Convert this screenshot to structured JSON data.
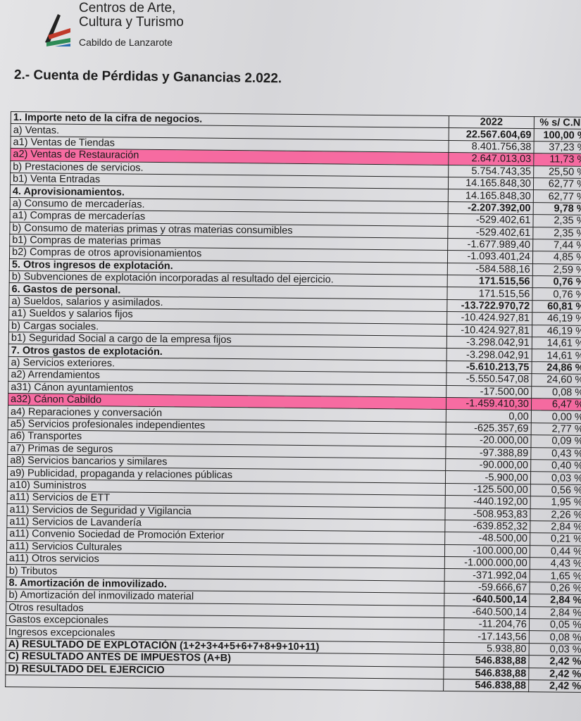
{
  "header": {
    "logo_line1": "Centros de Arte,",
    "logo_line2": "Cultura y Turismo",
    "logo_sub": "Cabildo de Lanzarote",
    "title": "2.- Cuenta de Pérdidas y Ganancias 2.022."
  },
  "colors": {
    "highlight": "#ff4a8c"
  },
  "table": {
    "columns": [
      "1. Importe neto de la cifra de negocios.",
      "2022",
      "% s/ C.N."
    ],
    "rows": [
      {
        "concept": "a) Ventas.",
        "value": "22.567.604,69",
        "pct": "100,00 %",
        "bold_value": true
      },
      {
        "concept": "a1) Ventas de Tiendas",
        "value": "8.401.756,38",
        "pct": "37,23 %"
      },
      {
        "concept": "a2) Ventas de Restauración",
        "value": "2.647.013,03",
        "pct": "11,73 %",
        "highlight": true
      },
      {
        "concept": "b) Prestaciones de servicios.",
        "value": "5.754.743,35",
        "pct": "25,50 %"
      },
      {
        "concept": "b1) Venta Entradas",
        "value": "14.165.848,30",
        "pct": "62,77 %"
      },
      {
        "concept": "4. Aprovisionamientos.",
        "value": "14.165.848,30",
        "pct": "62,77 %",
        "bold_concept": true
      },
      {
        "concept": "a) Consumo de mercaderías.",
        "value": "-2.207.392,00",
        "pct": "9,78 %",
        "bold_value": true
      },
      {
        "concept": "a1) Compras de mercaderías",
        "value": "-529.402,61",
        "pct": "2,35 %"
      },
      {
        "concept": "b) Consumo de materias primas y otras materias consumibles",
        "value": "-529.402,61",
        "pct": "2,35 %"
      },
      {
        "concept": "b1) Compras de materias primas",
        "value": "-1.677.989,40",
        "pct": "7,44 %"
      },
      {
        "concept": "b2) Compras de otros aprovisionamientos",
        "value": "-1.093.401,24",
        "pct": "4,85 %"
      },
      {
        "concept": "5. Otros ingresos de explotación.",
        "value": "-584.588,16",
        "pct": "2,59 %",
        "bold_concept": true
      },
      {
        "concept": "b) Subvenciones de explotación incorporadas al resultado del ejercicio.",
        "value": "171.515,56",
        "pct": "0,76 %",
        "bold_value": true
      },
      {
        "concept": "6. Gastos de personal.",
        "value": "171.515,56",
        "pct": "0,76 %",
        "bold_concept": true
      },
      {
        "concept": "a) Sueldos, salarios y asimilados.",
        "value": "-13.722.970,72",
        "pct": "60,81 %",
        "bold_value": true
      },
      {
        "concept": "a1) Sueldos y salarios fijos",
        "value": "-10.424.927,81",
        "pct": "46,19 %"
      },
      {
        "concept": "b) Cargas sociales.",
        "value": "-10.424.927,81",
        "pct": "46,19 %"
      },
      {
        "concept": "b1) Seguridad Social a cargo de la empresa fijos",
        "value": "-3.298.042,91",
        "pct": "14,61 %"
      },
      {
        "concept": "7. Otros gastos de explotación.",
        "value": "-3.298.042,91",
        "pct": "14,61 %",
        "bold_concept": true
      },
      {
        "concept": "a) Servicios exteriores.",
        "value": "-5.610.213,75",
        "pct": "24,86 %",
        "bold_value": true
      },
      {
        "concept": "a2) Arrendamientos",
        "value": "-5.550.547,08",
        "pct": "24,60 %"
      },
      {
        "concept": "a31) Cánon ayuntamientos",
        "value": "-17.500,00",
        "pct": "0,08 %"
      },
      {
        "concept": "a32) Cánon Cabildo",
        "value": "-1.459.410,30",
        "pct": "6,47 %",
        "highlight": true
      },
      {
        "concept": "a4) Reparaciones y conversación",
        "value": "0,00",
        "pct": "0,00 %"
      },
      {
        "concept": "a5) Servicios profesionales independientes",
        "value": "-625.357,69",
        "pct": "2,77 %"
      },
      {
        "concept": "a6) Transportes",
        "value": "-20.000,00",
        "pct": "0,09 %"
      },
      {
        "concept": "a7) Primas de seguros",
        "value": "-97.388,89",
        "pct": "0,43 %"
      },
      {
        "concept": "a8) Servicios bancarios y similares",
        "value": "-90.000,00",
        "pct": "0,40 %"
      },
      {
        "concept": "a9) Publicidad, propaganda y relaciones públicas",
        "value": "-5.900,00",
        "pct": "0,03 %"
      },
      {
        "concept": "a10) Suministros",
        "value": "-125.500,00",
        "pct": "0,56 %"
      },
      {
        "concept": "a11) Servicios de ETT",
        "value": "-440.192,00",
        "pct": "1,95 %"
      },
      {
        "concept": "a11) Servicios de Seguridad y Vigilancia",
        "value": "-508.953,83",
        "pct": "2,26 %"
      },
      {
        "concept": "a11) Servicios de Lavandería",
        "value": "-639.852,32",
        "pct": "2,84 %"
      },
      {
        "concept": "a11) Convenio Sociedad de Promoción Exterior",
        "value": "-48.500,00",
        "pct": "0,21 %"
      },
      {
        "concept": "a11) Servicios Culturales",
        "value": "-100.000,00",
        "pct": "0,44 %"
      },
      {
        "concept": "a11) Otros servicios",
        "value": "-1.000.000,00",
        "pct": "4,43 %"
      },
      {
        "concept": "b) Tributos",
        "value": "-371.992,04",
        "pct": "1,65 %"
      },
      {
        "concept": "8. Amortización de inmovilizado.",
        "value": "-59.666,67",
        "pct": "0,26 %",
        "bold_concept": true
      },
      {
        "concept": "b) Amortización del inmovilizado material",
        "value": "-640.500,14",
        "pct": "2,84 %",
        "bold_value": true
      },
      {
        "concept": "Otros resultados",
        "value": "-640.500,14",
        "pct": "2,84 %"
      },
      {
        "concept": "Gastos excepcionales",
        "value": "-11.204,76",
        "pct": "0,05 %"
      },
      {
        "concept": "Ingresos excepcionales",
        "value": "-17.143,56",
        "pct": "0,08 %"
      },
      {
        "concept": "A) RESULTADO DE EXPLOTACIÓN (1+2+3+4+5+6+7+8+9+10+11)",
        "value": "5.938,80",
        "pct": "0,03 %",
        "bold_concept": true
      },
      {
        "concept": "C) RESULTADO ANTES DE IMPUESTOS (A+B)",
        "value": "546.838,88",
        "pct": "2,42 %",
        "bold_concept": true,
        "bold_value": true
      },
      {
        "concept": "D) RESULTADO DEL EJERCICIO",
        "value": "546.838,88",
        "pct": "2,42 %",
        "bold_concept": true,
        "bold_value": true
      },
      {
        "concept": "",
        "value": "546.838,88",
        "pct": "2,42 %",
        "bold_value": true
      }
    ]
  }
}
